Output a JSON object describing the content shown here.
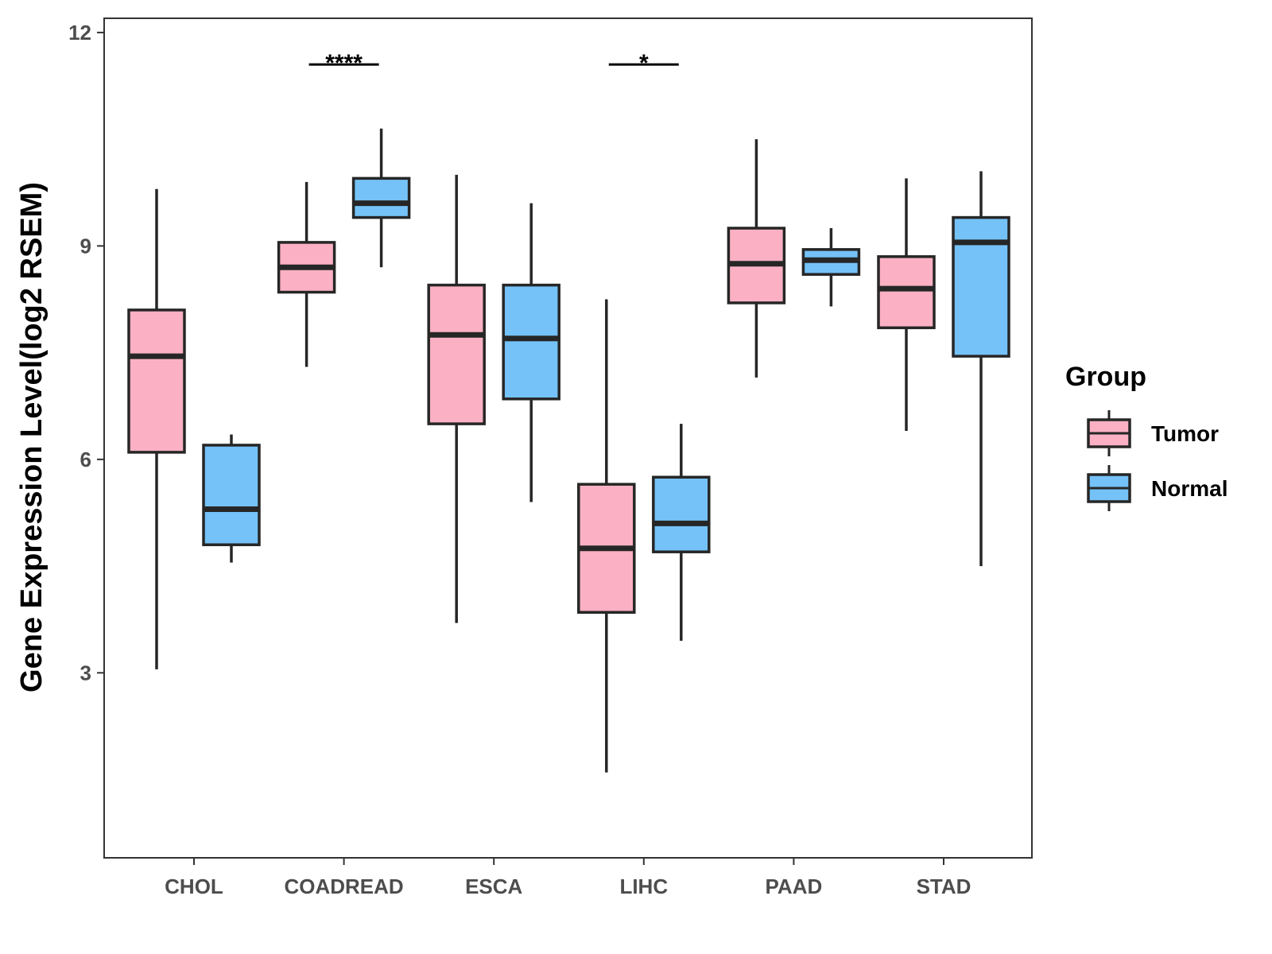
{
  "chart_data": {
    "type": "boxplot",
    "title": "",
    "xlabel": "",
    "ylabel": "Gene Expression Level(log2 RSEM)",
    "ylim": [
      0.4,
      12.2
    ],
    "yticks": [
      3,
      6,
      9,
      12
    ],
    "categories": [
      "CHOL",
      "COADREAD",
      "ESCA",
      "LIHC",
      "PAAD",
      "STAD"
    ],
    "legend": {
      "title": "Group",
      "position": "right"
    },
    "series": [
      {
        "name": "Tumor",
        "color": "#FBB1C3",
        "boxes": [
          {
            "category": "CHOL",
            "min": 3.05,
            "q1": 6.1,
            "median": 7.45,
            "q3": 8.1,
            "max": 9.8
          },
          {
            "category": "COADREAD",
            "min": 7.3,
            "q1": 8.35,
            "median": 8.7,
            "q3": 9.05,
            "max": 9.9
          },
          {
            "category": "ESCA",
            "min": 3.7,
            "q1": 6.5,
            "median": 7.75,
            "q3": 8.45,
            "max": 10.0
          },
          {
            "category": "LIHC",
            "min": 1.6,
            "q1": 3.85,
            "median": 4.75,
            "q3": 5.65,
            "max": 8.25
          },
          {
            "category": "PAAD",
            "min": 7.15,
            "q1": 8.2,
            "median": 8.75,
            "q3": 9.25,
            "max": 10.5
          },
          {
            "category": "STAD",
            "min": 6.4,
            "q1": 7.85,
            "median": 8.4,
            "q3": 8.85,
            "max": 9.95
          }
        ]
      },
      {
        "name": "Normal",
        "color": "#74C2F7",
        "boxes": [
          {
            "category": "CHOL",
            "min": 4.55,
            "q1": 4.8,
            "median": 5.3,
            "q3": 6.2,
            "max": 6.35
          },
          {
            "category": "COADREAD",
            "min": 8.7,
            "q1": 9.4,
            "median": 9.6,
            "q3": 9.95,
            "max": 10.65
          },
          {
            "category": "ESCA",
            "min": 5.4,
            "q1": 6.85,
            "median": 7.7,
            "q3": 8.45,
            "max": 9.6
          },
          {
            "category": "LIHC",
            "min": 3.45,
            "q1": 4.7,
            "median": 5.1,
            "q3": 5.75,
            "max": 6.5
          },
          {
            "category": "PAAD",
            "min": 8.15,
            "q1": 8.6,
            "median": 8.8,
            "q3": 8.95,
            "max": 9.25
          },
          {
            "category": "STAD",
            "min": 4.5,
            "q1": 7.45,
            "median": 9.05,
            "q3": 9.4,
            "max": 10.05
          }
        ]
      }
    ],
    "annotations": [
      {
        "category": "COADREAD",
        "label": "****",
        "y": 11.55
      },
      {
        "category": "LIHC",
        "label": "*",
        "y": 11.55
      }
    ],
    "colors": {
      "outline": "#262626",
      "axis": "#333333",
      "tick_text": "#4d4d4d"
    }
  }
}
